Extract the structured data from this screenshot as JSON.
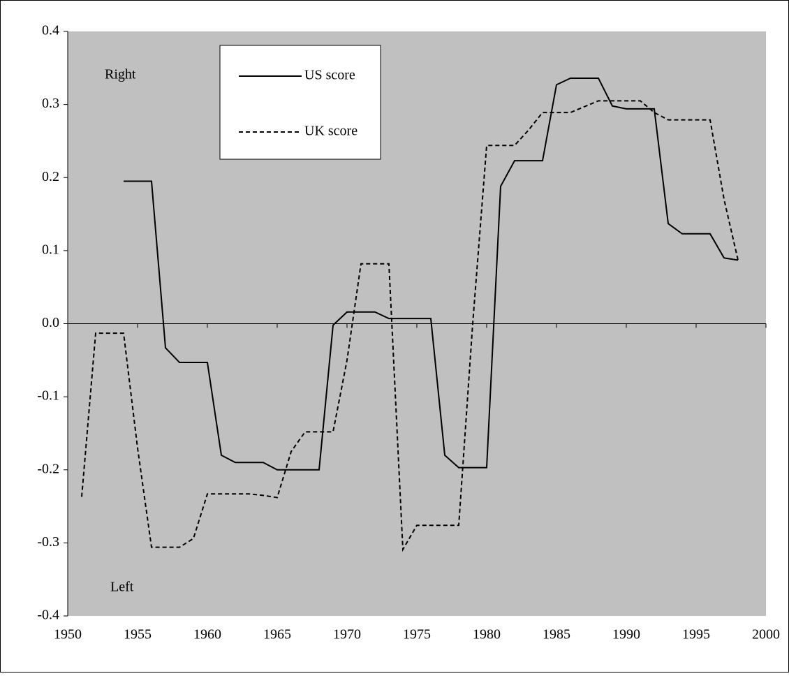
{
  "chart_data": {
    "type": "line",
    "x": [
      1951,
      1952,
      1953,
      1954,
      1955,
      1956,
      1957,
      1958,
      1959,
      1960,
      1961,
      1962,
      1963,
      1964,
      1965,
      1966,
      1967,
      1968,
      1969,
      1970,
      1971,
      1972,
      1973,
      1974,
      1975,
      1976,
      1977,
      1978,
      1979,
      1980,
      1981,
      1982,
      1983,
      1984,
      1985,
      1986,
      1987,
      1988,
      1989,
      1990,
      1991,
      1992,
      1993,
      1994,
      1995,
      1996,
      1997,
      1998
    ],
    "series": [
      {
        "name": "US score",
        "color": "#000000",
        "dashed": false,
        "values": [
          null,
          null,
          null,
          0.195,
          0.195,
          0.195,
          -0.033,
          -0.053,
          -0.053,
          -0.053,
          -0.18,
          -0.19,
          -0.19,
          -0.19,
          -0.2,
          -0.2,
          -0.2,
          -0.2,
          -0.002,
          0.016,
          0.016,
          0.016,
          0.007,
          0.007,
          0.007,
          0.007,
          -0.18,
          -0.197,
          -0.197,
          -0.197,
          0.188,
          0.223,
          0.223,
          0.223,
          0.327,
          0.336,
          0.336,
          0.336,
          0.298,
          0.294,
          0.294,
          0.294,
          0.137,
          0.123,
          0.123,
          0.123,
          0.09,
          0.087
        ]
      },
      {
        "name": "UK score",
        "color": "#000000",
        "dashed": true,
        "values": [
          -0.237,
          -0.013,
          -0.013,
          -0.013,
          -0.17,
          -0.306,
          -0.306,
          -0.306,
          -0.294,
          -0.233,
          -0.233,
          -0.233,
          -0.233,
          -0.235,
          -0.238,
          -0.175,
          -0.148,
          -0.148,
          -0.148,
          -0.05,
          0.082,
          0.082,
          0.082,
          -0.309,
          -0.276,
          -0.276,
          -0.276,
          -0.276,
          0.0,
          0.244,
          0.244,
          0.244,
          0.265,
          0.289,
          0.289,
          0.289,
          0.297,
          0.305,
          0.305,
          0.305,
          0.305,
          0.289,
          0.279,
          0.279,
          0.279,
          0.279,
          0.17,
          0.087
        ]
      }
    ],
    "xlim": [
      1950,
      2000
    ],
    "xticks": [
      1950,
      1955,
      1960,
      1965,
      1970,
      1975,
      1980,
      1985,
      1990,
      1995,
      2000
    ],
    "ylim": [
      -0.4,
      0.4
    ],
    "yticks": [
      0.4,
      0.3,
      0.2,
      0.1,
      {
        "value": 0,
        "label": "0.0"
      },
      -0.1,
      -0.2,
      -0.3,
      -0.4
    ],
    "annotations": [
      "Right",
      "Left"
    ],
    "plot_background": "#c0c0c0"
  }
}
